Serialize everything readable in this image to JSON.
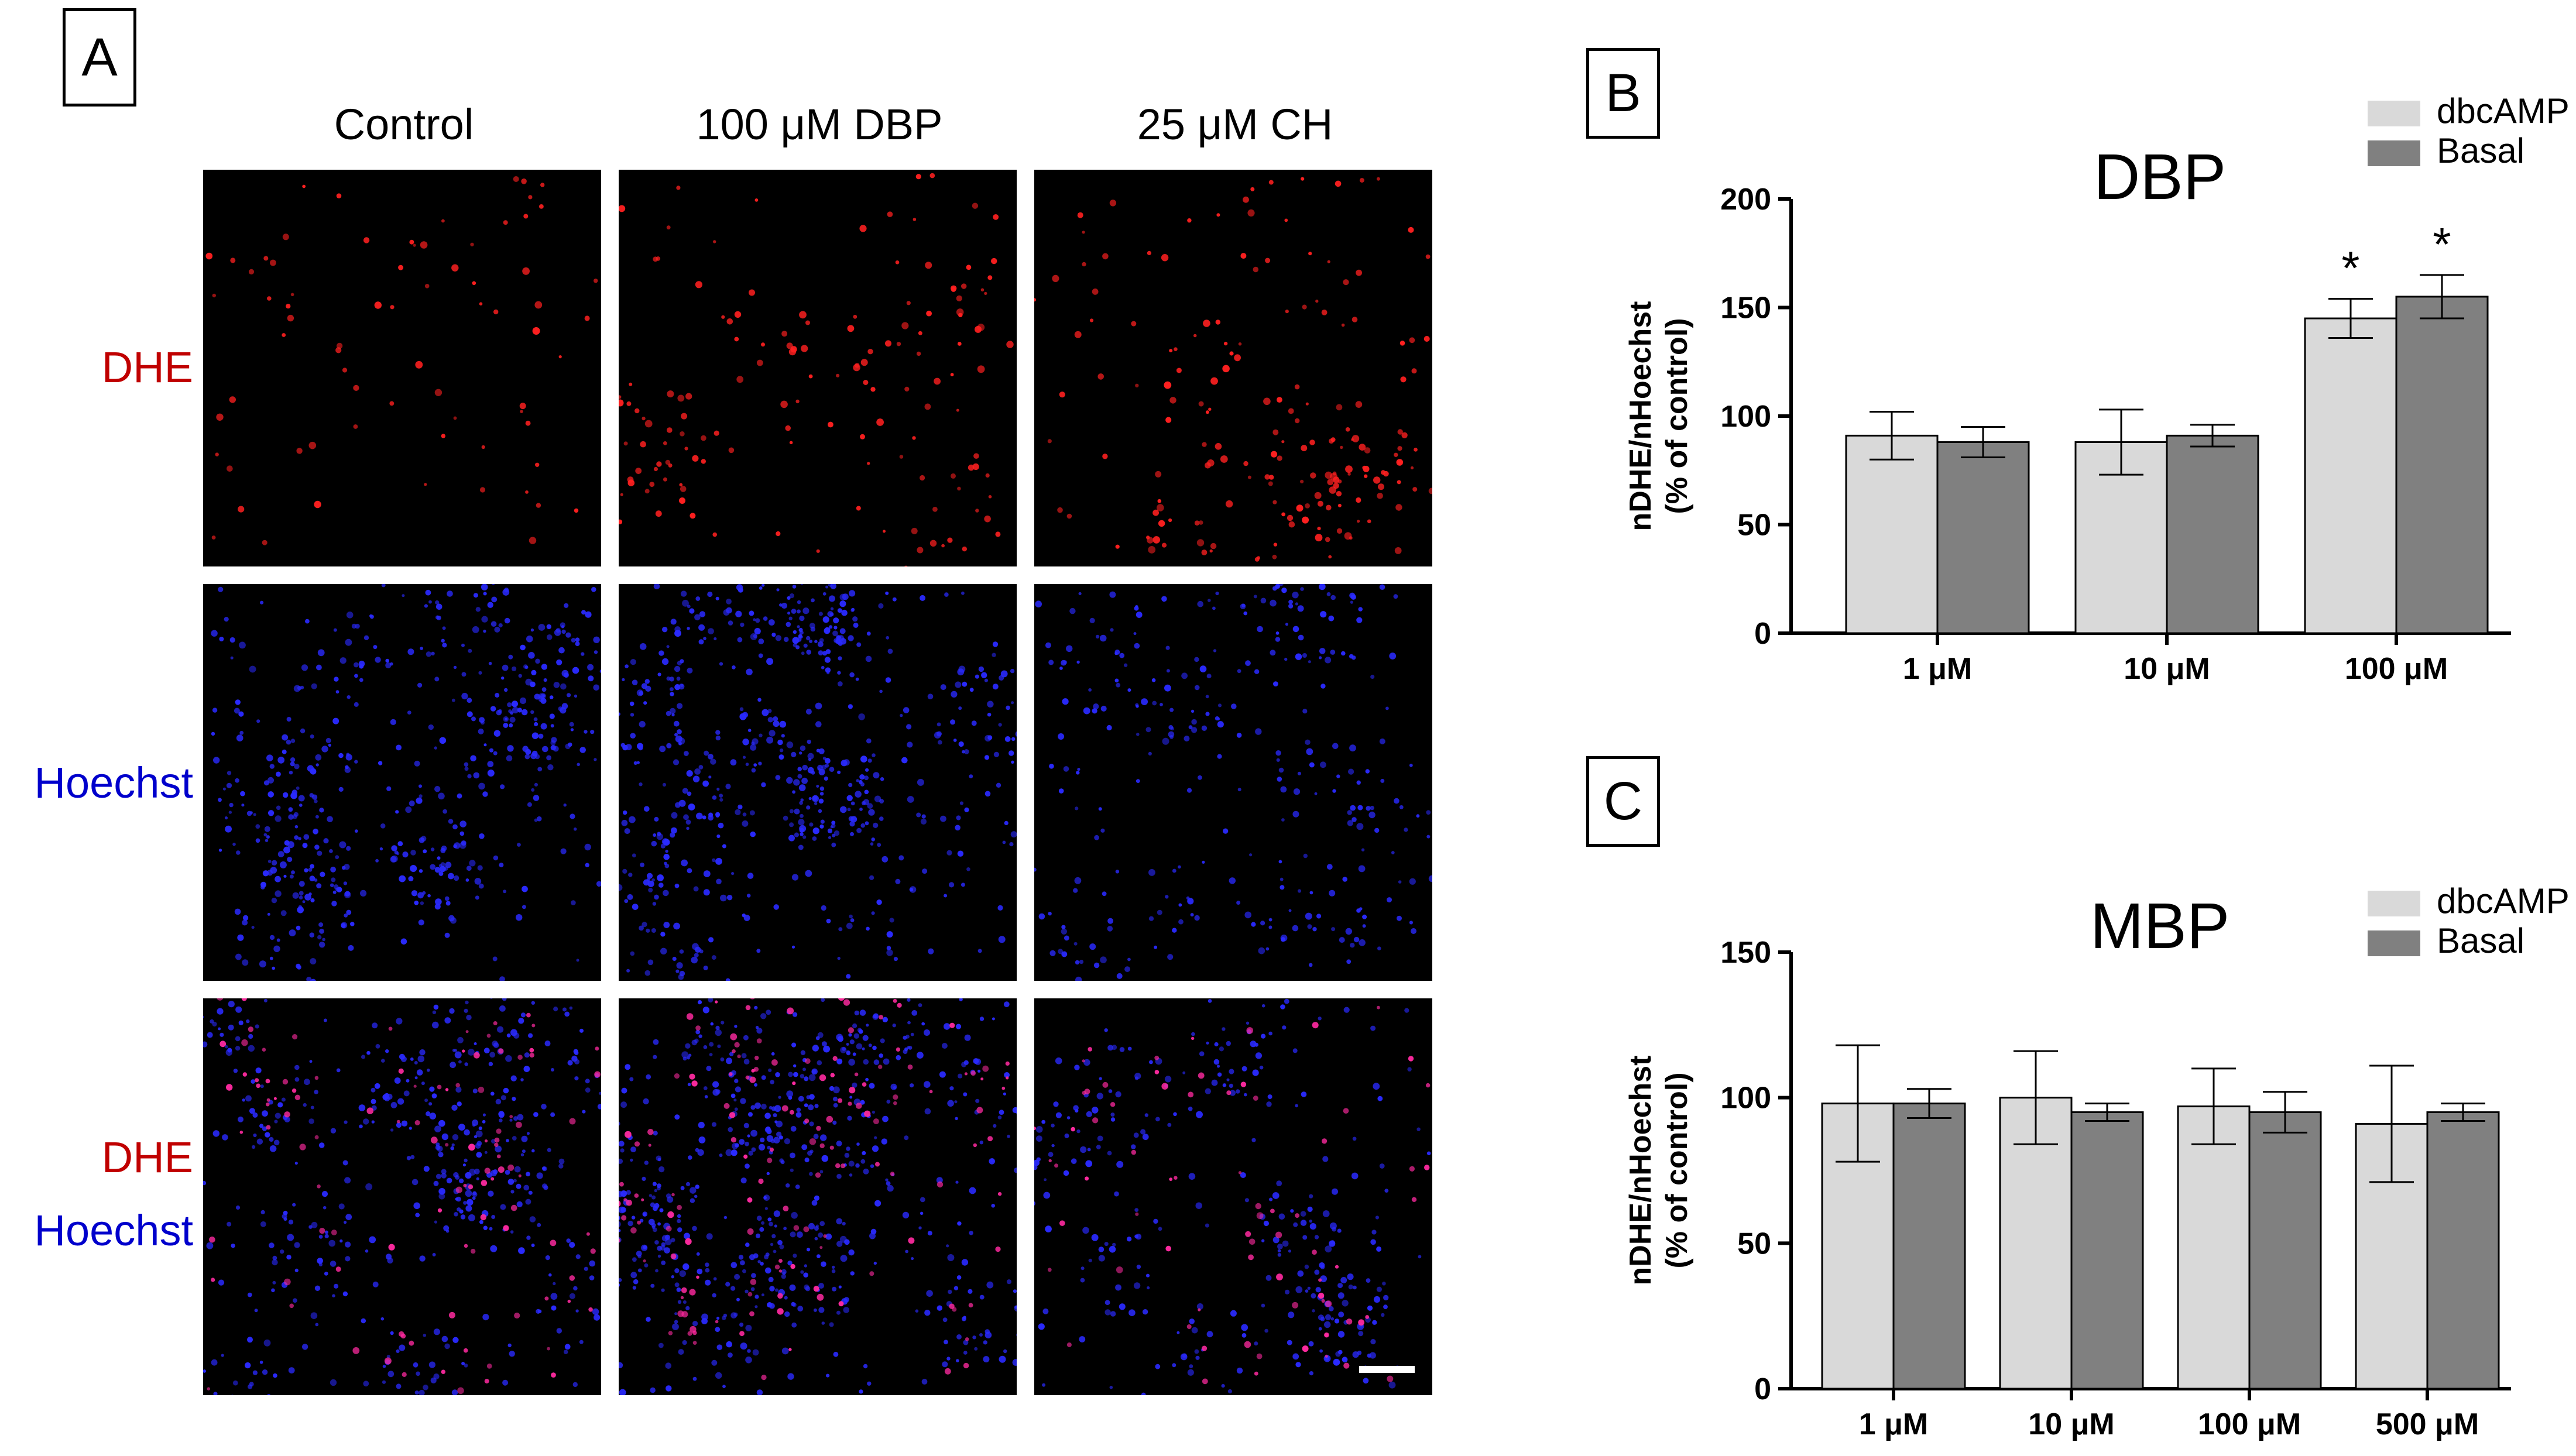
{
  "panel_a": {
    "letter": "A",
    "columns": [
      "Control",
      "100 μM DBP",
      "25 μM CH"
    ],
    "rows": [
      {
        "labels": [
          {
            "text": "DHE",
            "color": "#c00000"
          }
        ]
      },
      {
        "labels": [
          {
            "text": "Hoechst",
            "color": "#0000cc"
          }
        ]
      },
      {
        "labels": [
          {
            "text": "DHE",
            "color": "#c00000"
          },
          {
            "text": "Hoechst",
            "color": "#0000cc"
          }
        ]
      }
    ],
    "channel_colors": {
      "dhe": "#ff2020",
      "hoechst": "#2a2aff",
      "merge_dhe": "#ff2aa0"
    }
  },
  "panel_b": {
    "letter": "B"
  },
  "panel_c": {
    "letter": "C"
  },
  "chart_data": [
    {
      "type": "bar",
      "title": "DBP",
      "ylabel": "nDHE/nHoechst\n(% of control)",
      "ylim": [
        0,
        200
      ],
      "yticks": [
        0,
        50,
        100,
        150,
        200
      ],
      "categories": [
        "1 μM",
        "10 μM",
        "100 μM"
      ],
      "series": [
        {
          "name": "dbcAMP",
          "color": "#d9d9d9",
          "values": [
            91,
            88,
            145
          ],
          "errors": [
            11,
            15,
            9
          ]
        },
        {
          "name": "Basal",
          "color": "#808080",
          "values": [
            88,
            91,
            155
          ],
          "errors": [
            7,
            5,
            10
          ]
        }
      ],
      "annotations": [
        {
          "text": "*",
          "category": 2,
          "series": 0
        },
        {
          "text": "*",
          "category": 2,
          "series": 1
        }
      ],
      "legend": "top-right"
    },
    {
      "type": "bar",
      "title": "MBP",
      "ylabel": "nDHE/nHoechst\n(% of control)",
      "ylim": [
        0,
        150
      ],
      "yticks": [
        0,
        50,
        100,
        150
      ],
      "categories": [
        "1 μM",
        "10 μM",
        "100 μM",
        "500 μM"
      ],
      "series": [
        {
          "name": "dbcAMP",
          "color": "#d9d9d9",
          "values": [
            98,
            100,
            97,
            91
          ],
          "errors": [
            20,
            16,
            13,
            20
          ]
        },
        {
          "name": "Basal",
          "color": "#808080",
          "values": [
            98,
            95,
            95,
            95
          ],
          "errors": [
            5,
            3,
            7,
            3
          ]
        }
      ],
      "annotations": [],
      "legend": "top-right"
    }
  ]
}
